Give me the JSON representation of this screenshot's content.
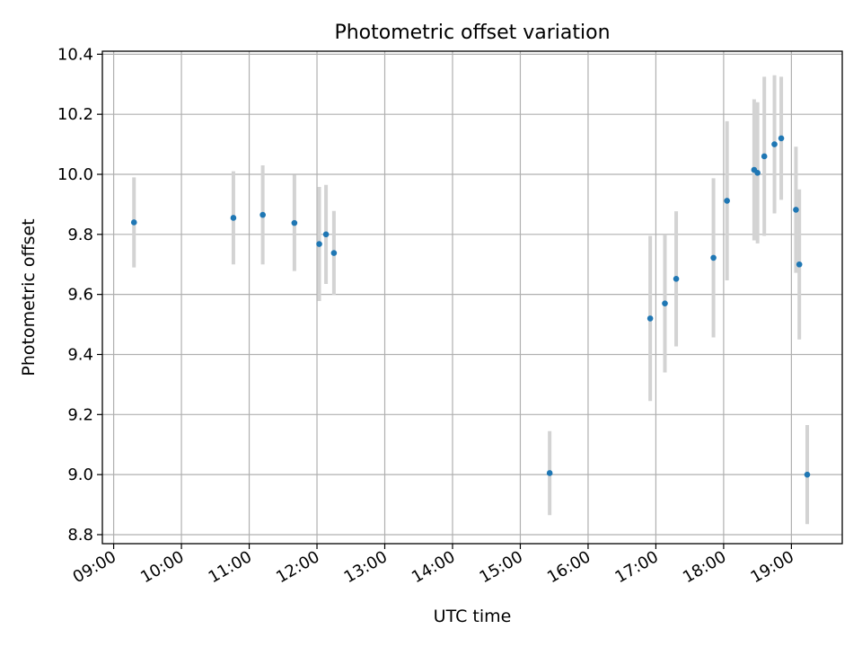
{
  "chart_data": {
    "type": "scatter",
    "title": "Photometric offset variation",
    "xlabel": "UTC time",
    "ylabel": "Photometric offset",
    "x_type": "time",
    "xlim": [
      "08:50",
      "19:45"
    ],
    "ylim": [
      8.77,
      10.41
    ],
    "x_ticks": [
      "09:00",
      "10:00",
      "11:00",
      "12:00",
      "13:00",
      "14:00",
      "15:00",
      "16:00",
      "17:00",
      "18:00",
      "19:00"
    ],
    "y_ticks": [
      "8.8",
      "9.0",
      "9.2",
      "9.4",
      "9.6",
      "9.8",
      "10.0",
      "10.2",
      "10.4"
    ],
    "grid": true,
    "colors": {
      "points": "#1f77b4",
      "errorbars": "#d3d3d3",
      "grid": "#b0b0b0"
    },
    "points": [
      {
        "x": "09:18",
        "y": 9.84,
        "err": 0.15
      },
      {
        "x": "10:46",
        "y": 9.855,
        "err": 0.155
      },
      {
        "x": "11:12",
        "y": 9.865,
        "err": 0.165
      },
      {
        "x": "11:40",
        "y": 9.838,
        "err": 0.16
      },
      {
        "x": "12:02",
        "y": 9.768,
        "err": 0.19
      },
      {
        "x": "12:08",
        "y": 9.8,
        "err": 0.165
      },
      {
        "x": "12:15",
        "y": 9.738,
        "err": 0.14
      },
      {
        "x": "15:26",
        "y": 9.005,
        "err": 0.14
      },
      {
        "x": "16:55",
        "y": 9.52,
        "err": 0.275
      },
      {
        "x": "17:08",
        "y": 9.57,
        "err": 0.23
      },
      {
        "x": "17:18",
        "y": 9.652,
        "err": 0.225
      },
      {
        "x": "17:51",
        "y": 9.722,
        "err": 0.265
      },
      {
        "x": "18:03",
        "y": 9.912,
        "err": 0.265
      },
      {
        "x": "18:27",
        "y": 10.015,
        "err": 0.235
      },
      {
        "x": "18:30",
        "y": 10.005,
        "err": 0.235
      },
      {
        "x": "18:36",
        "y": 10.06,
        "err": 0.265
      },
      {
        "x": "18:45",
        "y": 10.1,
        "err": 0.23
      },
      {
        "x": "18:51",
        "y": 10.12,
        "err": 0.205
      },
      {
        "x": "19:04",
        "y": 9.882,
        "err": 0.21
      },
      {
        "x": "19:07",
        "y": 9.7,
        "err": 0.25
      },
      {
        "x": "19:14",
        "y": 9.0,
        "err": 0.165
      }
    ]
  }
}
